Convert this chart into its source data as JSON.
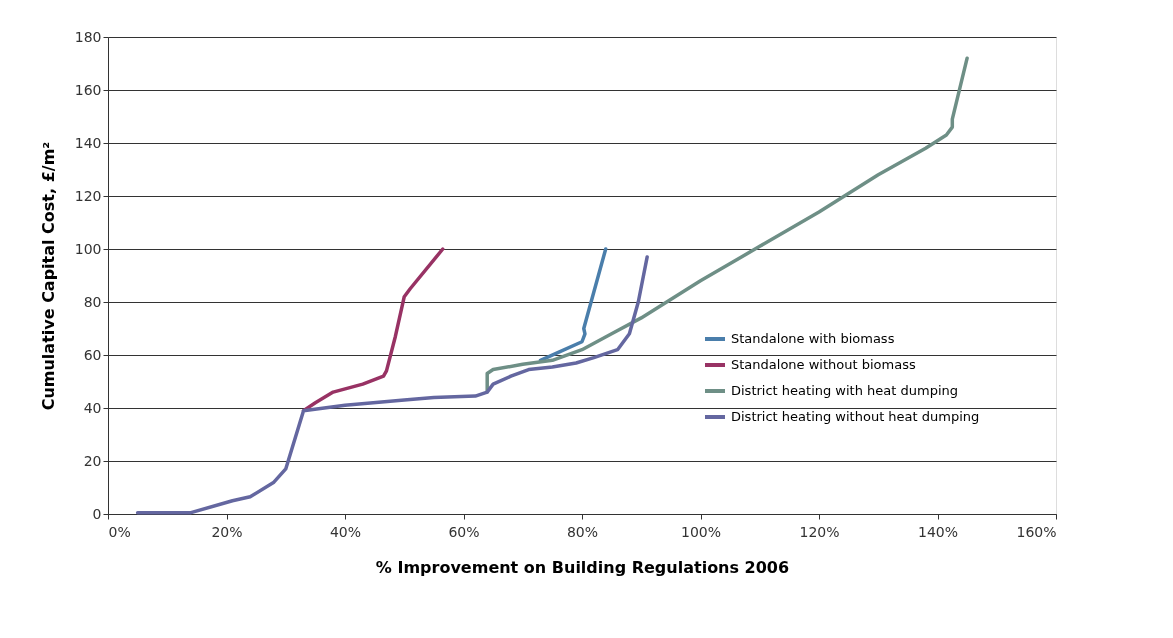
{
  "chart_data": {
    "type": "line",
    "xlabel": "% Improvement on Building Regulations 2006",
    "ylabel": "Cumulative Capital Cost, £/m²",
    "xlim": [
      0,
      160
    ],
    "ylim": [
      0,
      180
    ],
    "xticks": [
      {
        "value": 0,
        "label": "0%"
      },
      {
        "value": 20,
        "label": "20%"
      },
      {
        "value": 40,
        "label": "40%"
      },
      {
        "value": 60,
        "label": "60%"
      },
      {
        "value": 80,
        "label": "80%"
      },
      {
        "value": 100,
        "label": "100%"
      },
      {
        "value": 120,
        "label": "120%"
      },
      {
        "value": 140,
        "label": "140%"
      },
      {
        "value": 160,
        "label": "160%"
      }
    ],
    "yticks": [
      0,
      20,
      40,
      60,
      80,
      100,
      120,
      140,
      160,
      180
    ],
    "grid": "y",
    "legend": "right",
    "marker": "none",
    "line_style": "solid",
    "series": [
      {
        "name": "Standalone with biomass",
        "color": "#4a7eab",
        "x": [
          73,
          76,
          80,
          80.5,
          80.3,
          84
        ],
        "values": [
          58,
          61,
          65,
          68,
          70,
          100
        ]
      },
      {
        "name": "Standalone without biomass",
        "color": "#983264",
        "x": [
          33,
          35,
          38,
          43,
          46.5,
          47,
          48.5,
          50,
          51,
          56.5
        ],
        "values": [
          39,
          42,
          46,
          49,
          52,
          54,
          67,
          82,
          85,
          100
        ]
      },
      {
        "name": "District heating with heat dumping",
        "color": "#6e8f86",
        "x": [
          64,
          64,
          65,
          70,
          75,
          80,
          85,
          90,
          100,
          110,
          120,
          130,
          138,
          141.5,
          142.5,
          142.5,
          145
        ],
        "values": [
          46,
          53,
          54.5,
          56.5,
          58,
          62,
          68,
          74,
          88,
          101,
          114,
          128,
          138,
          143,
          146,
          149,
          172
        ]
      },
      {
        "name": "District heating without heat dumping",
        "color": "#6467a0",
        "x": [
          5,
          14,
          21,
          24,
          28,
          30,
          33,
          40,
          50,
          55,
          62,
          64,
          65,
          68,
          71,
          75,
          79,
          82,
          86,
          88,
          89.5,
          91
        ],
        "values": [
          0.5,
          0.5,
          5,
          6.5,
          12,
          17,
          39,
          41,
          43,
          44,
          44.5,
          46,
          49,
          52,
          54.5,
          55.5,
          57,
          59,
          62,
          68,
          80,
          97
        ]
      }
    ]
  }
}
